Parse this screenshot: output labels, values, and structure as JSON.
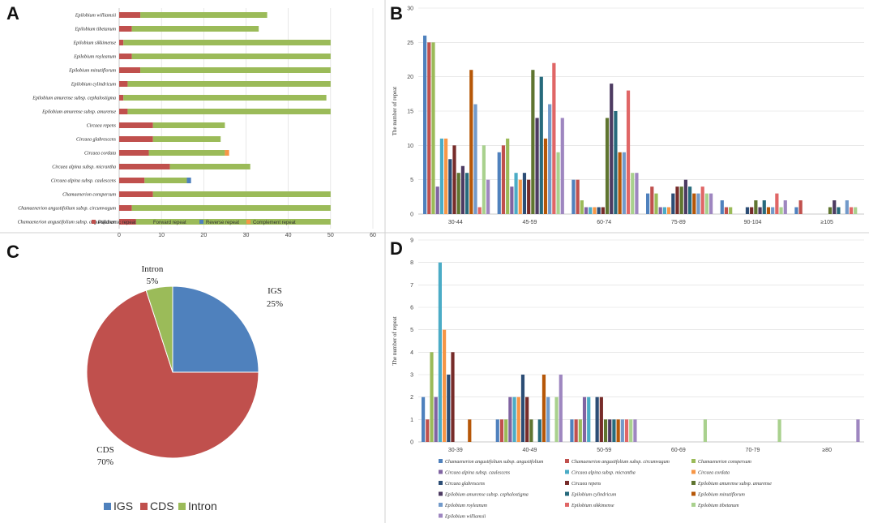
{
  "panels": [
    "A",
    "B",
    "C",
    "D"
  ],
  "colors": {
    "palindromic": "#C0504D",
    "forward": "#9BBB59",
    "reverse": "#4F81BD",
    "complement": "#F79646",
    "pie_igs": "#4F81BD",
    "pie_cds": "#C0504D",
    "pie_intron": "#9BBB59"
  },
  "chart_data": [
    {
      "panel": "A",
      "type": "bar",
      "orientation": "horizontal",
      "stacked": true,
      "categories": [
        "Epilobium williamsii",
        "Epilobium tibetanum",
        "Epilobium sikkimense",
        "Epilobium royleanum",
        "Epilobium minutiflorum",
        "Epilobium cylindricum",
        "Epilobium amurense subsp. cephalostigma",
        "Epilobium amurense subsp. amurense",
        "Circaea repens",
        "Circaea glabrescens",
        "Circaea cordata",
        "Circaea alpina subsp. micrantha",
        "Circaea alpina subsp. caulescens",
        "Chamaenerion conspersum",
        "Chamaenerion angustifolium subsp. circumvagum",
        "Chamaenerion angustifolium subsp. angustifolium"
      ],
      "series": [
        {
          "name": "Palidromic repeat",
          "values": [
            5,
            3,
            1,
            3,
            5,
            2,
            1,
            2,
            8,
            8,
            7,
            12,
            6,
            8,
            3,
            4
          ]
        },
        {
          "name": "Forward repeat",
          "values": [
            30,
            30,
            49,
            47,
            45,
            48,
            48,
            48,
            17,
            16,
            18,
            19,
            10,
            42,
            47,
            46
          ]
        },
        {
          "name": "Reverse repeat",
          "values": [
            0,
            0,
            0,
            0,
            0,
            0,
            0,
            0,
            0,
            0,
            0,
            0,
            1,
            0,
            0,
            0
          ]
        },
        {
          "name": "Complement repeat",
          "values": [
            0,
            0,
            0,
            0,
            0,
            0,
            0,
            0,
            0,
            0,
            1,
            0,
            0,
            0,
            0,
            0
          ]
        }
      ],
      "xlim": [
        0,
        60
      ],
      "xticks": [
        "0",
        "10",
        "20",
        "30",
        "40",
        "50",
        "60"
      ],
      "legend": "bottom"
    },
    {
      "panel": "B",
      "type": "bar",
      "ylabel": "The number of repeat",
      "ylim": [
        0,
        30
      ],
      "yticks": [
        "0",
        "5",
        "10",
        "15",
        "20",
        "25",
        "30"
      ],
      "categories": [
        "30-44",
        "45-59",
        "60-74",
        "75-89",
        "90-104",
        "≥105"
      ],
      "series_values": [
        [
          26,
          9,
          5,
          3,
          2,
          1
        ],
        [
          25,
          10,
          5,
          4,
          1,
          2
        ],
        [
          25,
          11,
          2,
          3,
          1,
          0
        ],
        [
          4,
          4,
          1,
          1,
          0,
          0
        ],
        [
          11,
          6,
          1,
          1,
          0,
          0
        ],
        [
          11,
          5,
          1,
          1,
          0,
          0
        ],
        [
          8,
          6,
          1,
          3,
          1,
          0
        ],
        [
          10,
          5,
          1,
          4,
          1,
          0
        ],
        [
          6,
          21,
          14,
          4,
          2,
          1
        ],
        [
          7,
          14,
          19,
          5,
          1,
          2
        ],
        [
          6,
          20,
          15,
          4,
          2,
          1
        ],
        [
          21,
          11,
          9,
          3,
          1,
          0
        ],
        [
          16,
          16,
          9,
          3,
          1,
          2
        ],
        [
          1,
          22,
          18,
          4,
          3,
          1
        ],
        [
          10,
          9,
          6,
          3,
          1,
          1
        ],
        [
          5,
          14,
          6,
          3,
          2,
          0
        ]
      ],
      "legend": "none"
    },
    {
      "panel": "C",
      "type": "pie",
      "slices": [
        {
          "label": "IGS",
          "value": 25,
          "text": "25%"
        },
        {
          "label": "CDS",
          "value": 70,
          "text": "70%"
        },
        {
          "label": "Intron",
          "value": 5,
          "text": "5%"
        }
      ],
      "legend": "bottom"
    },
    {
      "panel": "D",
      "type": "bar",
      "ylabel": "The number of repeat",
      "ylim": [
        0,
        9
      ],
      "yticks": [
        "0",
        "1",
        "2",
        "3",
        "4",
        "5",
        "6",
        "7",
        "8",
        "9"
      ],
      "categories": [
        "30-39",
        "40-49",
        "50-59",
        "60-69",
        "70-79",
        "≥80"
      ],
      "series": [
        {
          "name": "Chamaenerion angustifolium subsp. angustifolium",
          "color": "#4F81BD",
          "values": [
            2,
            1,
            1,
            0,
            0,
            0
          ]
        },
        {
          "name": "Chamaenerion angustifolium subsp. circumvagum",
          "color": "#C0504D",
          "values": [
            1,
            1,
            1,
            0,
            0,
            0
          ]
        },
        {
          "name": "Chamaenerion conspersum",
          "color": "#9BBB59",
          "values": [
            4,
            1,
            1,
            0,
            0,
            0
          ]
        },
        {
          "name": "Circaea alpina subsp. caulescens",
          "color": "#8064A2",
          "values": [
            2,
            2,
            2,
            0,
            0,
            0
          ]
        },
        {
          "name": "Circaea alpina subsp. micrantha",
          "color": "#4BACC6",
          "values": [
            8,
            2,
            2,
            0,
            0,
            0
          ]
        },
        {
          "name": "Circaea cordata",
          "color": "#F79646",
          "values": [
            5,
            2,
            0,
            0,
            0,
            0
          ]
        },
        {
          "name": "Circaea glabrescens",
          "color": "#2C4D75",
          "values": [
            3,
            3,
            2,
            0,
            0,
            0
          ]
        },
        {
          "name": "Circaea repens",
          "color": "#772C2A",
          "values": [
            4,
            2,
            2,
            0,
            0,
            0
          ]
        },
        {
          "name": "Epilobium amurense subsp. amurense",
          "color": "#5F7530",
          "values": [
            0,
            1,
            1,
            0,
            0,
            0
          ]
        },
        {
          "name": "Epilobium amurense subsp. cephalostigma",
          "color": "#4D3B62",
          "values": [
            0,
            0,
            1,
            0,
            0,
            0
          ]
        },
        {
          "name": "Epilobium cylindricum",
          "color": "#276A7C",
          "values": [
            0,
            1,
            1,
            0,
            0,
            0
          ]
        },
        {
          "name": "Epilobium minutiflorum",
          "color": "#B65708",
          "values": [
            1,
            3,
            1,
            0,
            0,
            0
          ]
        },
        {
          "name": "Epilobium royleanum",
          "color": "#729ACA",
          "values": [
            0,
            2,
            1,
            0,
            0,
            0
          ]
        },
        {
          "name": "Epilobium sikkimense",
          "color": "#E06666",
          "values": [
            0,
            0,
            1,
            0,
            0,
            0
          ]
        },
        {
          "name": "Epilobium tibetanum",
          "color": "#A9D18E",
          "values": [
            0,
            2,
            1,
            1,
            1,
            0
          ]
        },
        {
          "name": "Epilobium williamsii",
          "color": "#9E86C0",
          "values": [
            0,
            3,
            1,
            0,
            0,
            1
          ]
        }
      ],
      "legend": "bottom"
    }
  ]
}
